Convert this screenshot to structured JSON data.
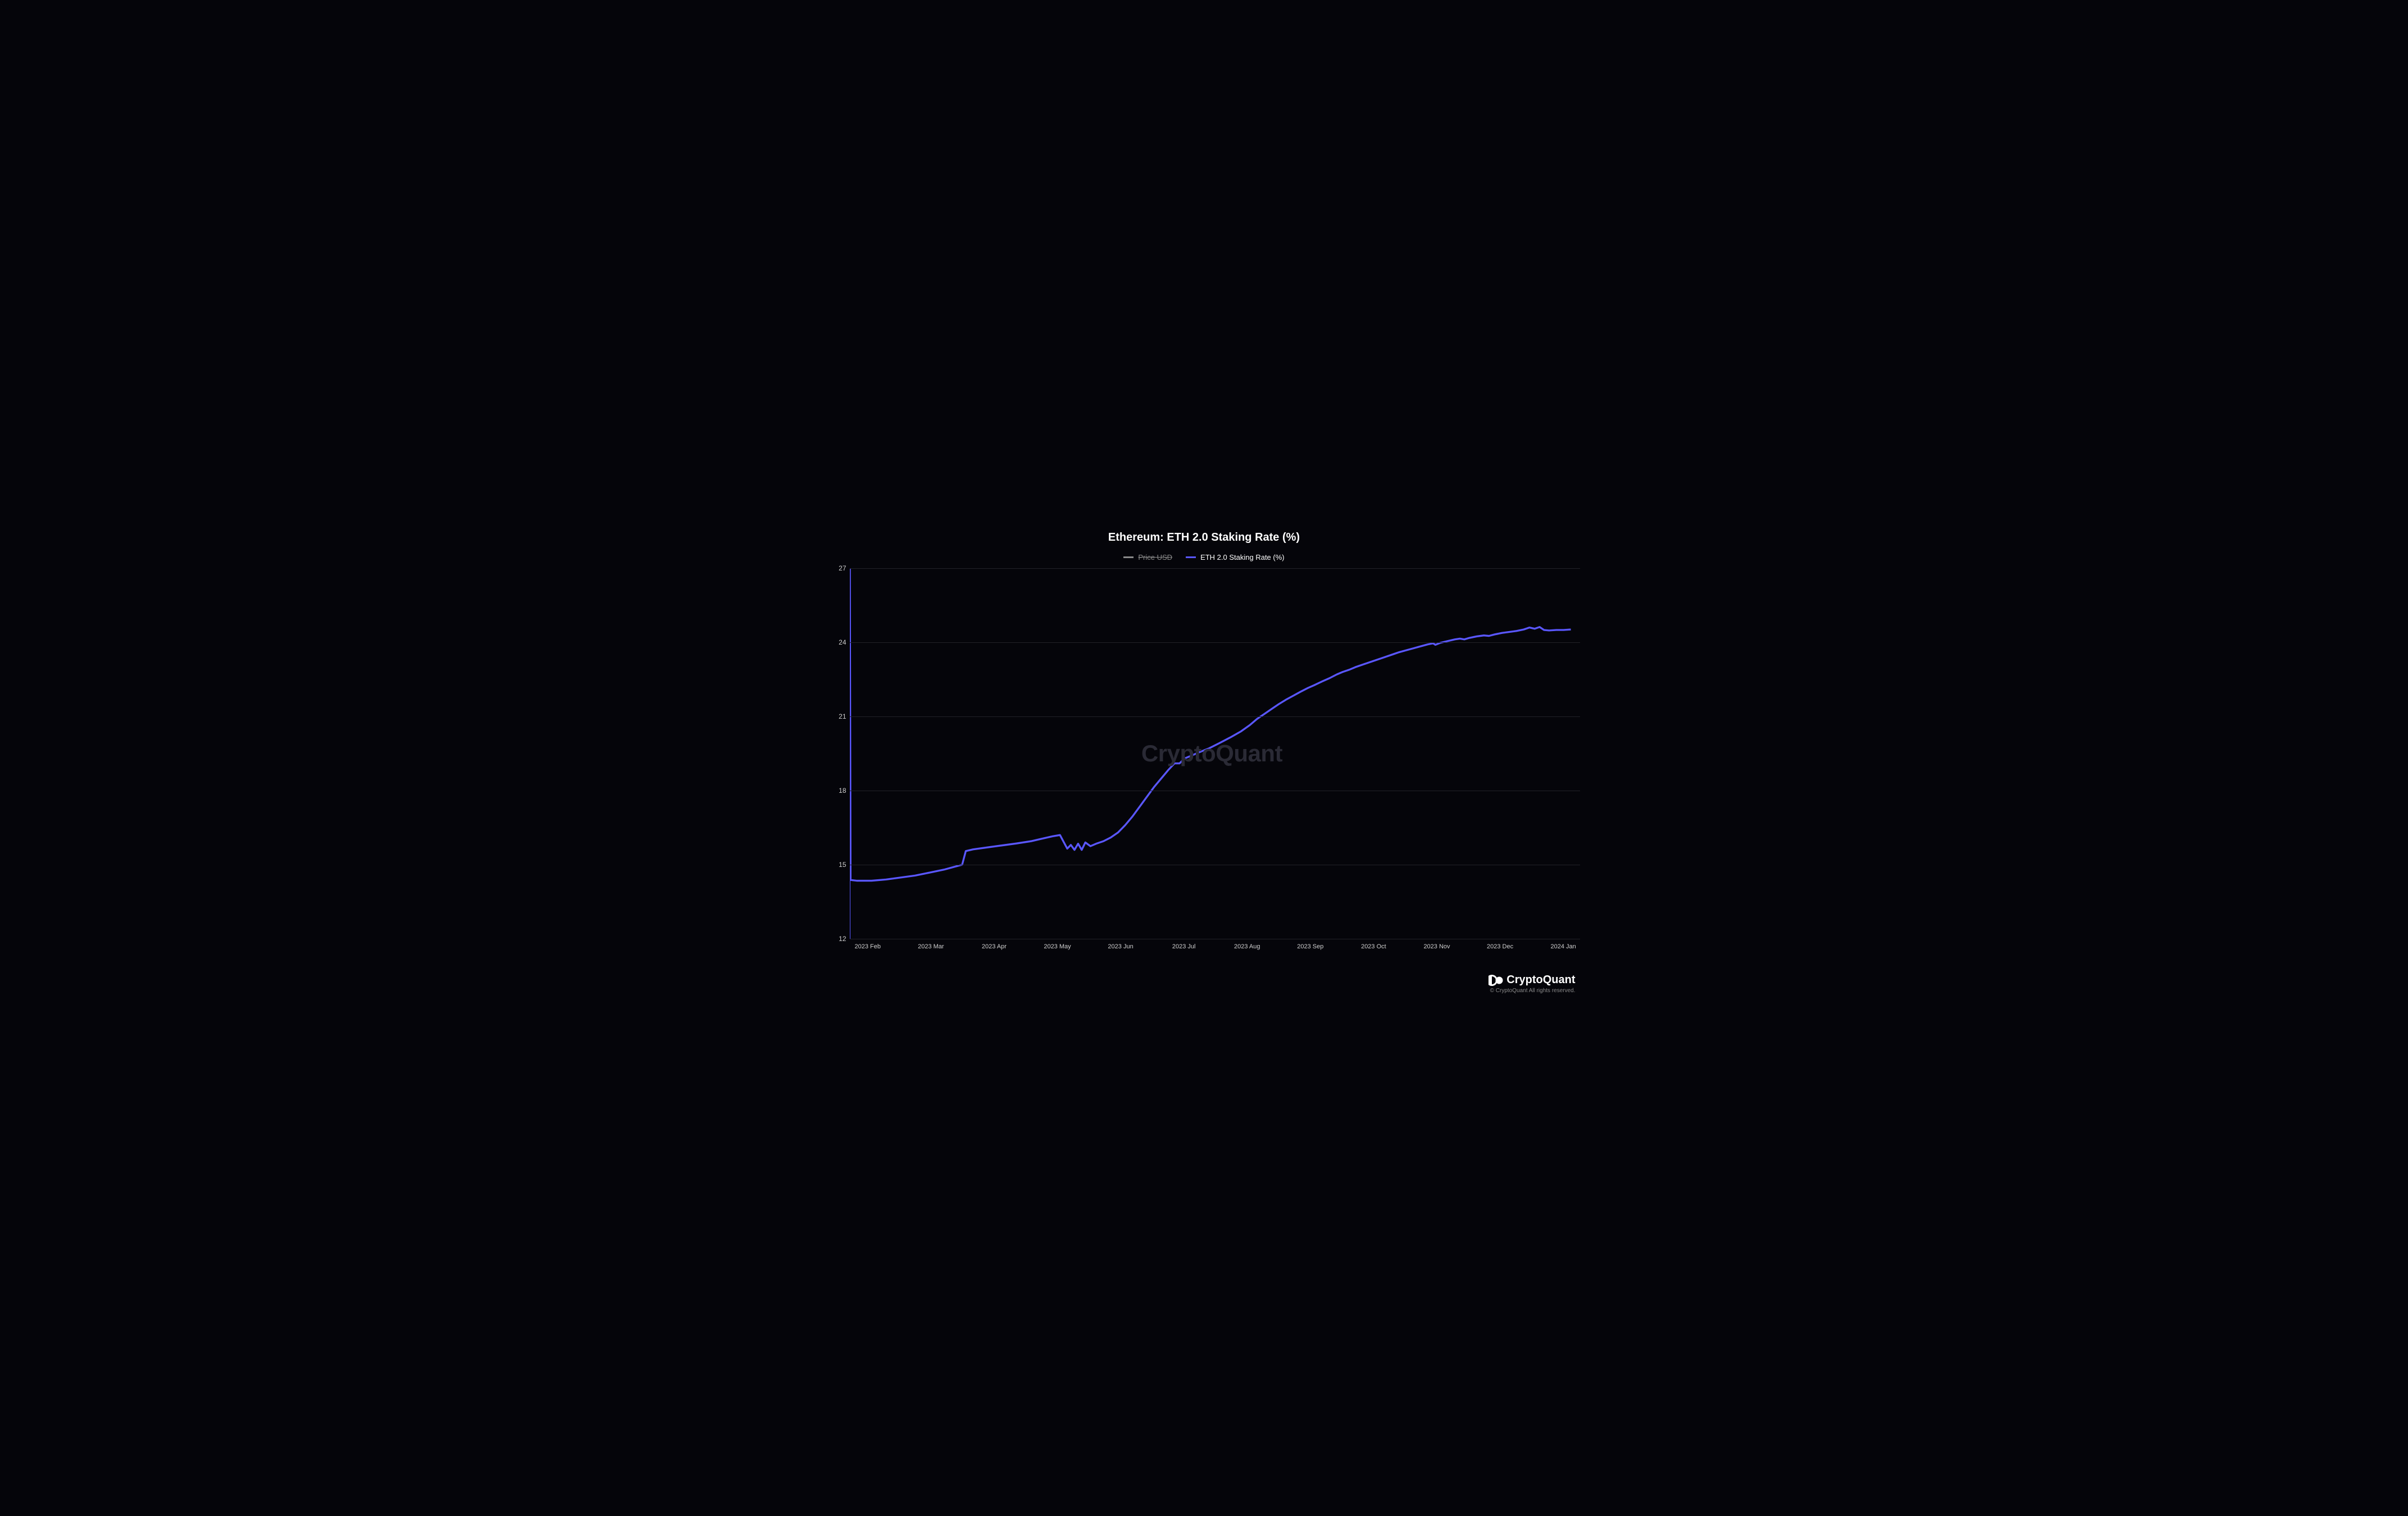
{
  "chart": {
    "type": "line",
    "title": "Ethereum: ETH 2.0 Staking Rate (%)",
    "title_fontsize": 20,
    "title_color": "#ffffff",
    "background_color": "#05050a",
    "grid_color": "#222228",
    "axis_label_color": "#cfcfcf",
    "axis_label_fontsize": 12,
    "axis_line_color": "#5757ff",
    "watermark_text": "CryptoQuant",
    "watermark_color": "#2a2a35",
    "watermark_fontsize": 42,
    "legend": {
      "items": [
        {
          "label": "Price USD",
          "color": "#8a8a8a",
          "strike": true
        },
        {
          "label": "ETH 2.0 Staking Rate (%)",
          "color": "#5a57ff",
          "strike": false
        }
      ],
      "fontsize": 13
    },
    "y_axis": {
      "lim": [
        12,
        27
      ],
      "ticks": [
        12,
        15,
        18,
        21,
        24,
        27
      ],
      "grid": true
    },
    "x_axis": {
      "labels": [
        "2023 Feb",
        "2023 Mar",
        "2023 Apr",
        "2023 May",
        "2023 Jun",
        "2023 Jul",
        "2023 Aug",
        "2023 Sep",
        "2023 Oct",
        "2023 Nov",
        "2023 Dec",
        "2024 Jan"
      ],
      "range_fraction_start": 0.025,
      "range_fraction_end": 0.985
    },
    "series": [
      {
        "name": "ETH 2.0 Staking Rate (%)",
        "color": "#5a57ff",
        "line_width": 2.2,
        "data": [
          [
            0.0,
            27.0
          ],
          [
            0.001,
            14.38
          ],
          [
            0.01,
            14.35
          ],
          [
            0.03,
            14.35
          ],
          [
            0.05,
            14.4
          ],
          [
            0.07,
            14.48
          ],
          [
            0.09,
            14.56
          ],
          [
            0.11,
            14.68
          ],
          [
            0.13,
            14.8
          ],
          [
            0.145,
            14.92
          ],
          [
            0.155,
            15.0
          ],
          [
            0.16,
            15.55
          ],
          [
            0.17,
            15.62
          ],
          [
            0.19,
            15.7
          ],
          [
            0.21,
            15.78
          ],
          [
            0.23,
            15.86
          ],
          [
            0.25,
            15.95
          ],
          [
            0.265,
            16.05
          ],
          [
            0.28,
            16.15
          ],
          [
            0.29,
            16.2
          ],
          [
            0.3,
            15.65
          ],
          [
            0.305,
            15.8
          ],
          [
            0.31,
            15.6
          ],
          [
            0.315,
            15.85
          ],
          [
            0.32,
            15.6
          ],
          [
            0.325,
            15.9
          ],
          [
            0.332,
            15.75
          ],
          [
            0.34,
            15.85
          ],
          [
            0.35,
            15.95
          ],
          [
            0.36,
            16.1
          ],
          [
            0.37,
            16.3
          ],
          [
            0.38,
            16.6
          ],
          [
            0.39,
            16.95
          ],
          [
            0.4,
            17.35
          ],
          [
            0.41,
            17.75
          ],
          [
            0.42,
            18.15
          ],
          [
            0.43,
            18.5
          ],
          [
            0.44,
            18.85
          ],
          [
            0.448,
            19.1
          ],
          [
            0.455,
            19.1
          ],
          [
            0.462,
            19.3
          ],
          [
            0.472,
            19.42
          ],
          [
            0.482,
            19.55
          ],
          [
            0.495,
            19.7
          ],
          [
            0.51,
            19.92
          ],
          [
            0.525,
            20.15
          ],
          [
            0.54,
            20.4
          ],
          [
            0.552,
            20.65
          ],
          [
            0.562,
            20.9
          ],
          [
            0.572,
            21.1
          ],
          [
            0.582,
            21.3
          ],
          [
            0.592,
            21.5
          ],
          [
            0.602,
            21.68
          ],
          [
            0.612,
            21.84
          ],
          [
            0.622,
            22.0
          ],
          [
            0.632,
            22.15
          ],
          [
            0.642,
            22.28
          ],
          [
            0.652,
            22.42
          ],
          [
            0.662,
            22.55
          ],
          [
            0.672,
            22.7
          ],
          [
            0.68,
            22.8
          ],
          [
            0.69,
            22.9
          ],
          [
            0.698,
            23.0
          ],
          [
            0.708,
            23.1
          ],
          [
            0.718,
            23.2
          ],
          [
            0.728,
            23.3
          ],
          [
            0.738,
            23.4
          ],
          [
            0.748,
            23.5
          ],
          [
            0.758,
            23.6
          ],
          [
            0.768,
            23.68
          ],
          [
            0.778,
            23.76
          ],
          [
            0.788,
            23.84
          ],
          [
            0.798,
            23.92
          ],
          [
            0.805,
            23.96
          ],
          [
            0.808,
            23.9
          ],
          [
            0.815,
            23.98
          ],
          [
            0.825,
            24.05
          ],
          [
            0.835,
            24.12
          ],
          [
            0.842,
            24.15
          ],
          [
            0.848,
            24.12
          ],
          [
            0.855,
            24.18
          ],
          [
            0.865,
            24.24
          ],
          [
            0.875,
            24.28
          ],
          [
            0.882,
            24.26
          ],
          [
            0.89,
            24.32
          ],
          [
            0.9,
            24.38
          ],
          [
            0.91,
            24.42
          ],
          [
            0.92,
            24.46
          ],
          [
            0.93,
            24.52
          ],
          [
            0.938,
            24.6
          ],
          [
            0.945,
            24.55
          ],
          [
            0.952,
            24.62
          ],
          [
            0.958,
            24.5
          ],
          [
            0.965,
            24.48
          ],
          [
            0.975,
            24.5
          ],
          [
            0.985,
            24.5
          ],
          [
            0.995,
            24.52
          ]
        ]
      }
    ]
  },
  "footer": {
    "brand": "CryptoQuant",
    "brand_color": "#ffffff",
    "brand_fontsize": 20,
    "copyright": "© CryptoQuant All rights reserved.",
    "copyright_color": "#8a8a8a",
    "copyright_fontsize": 10
  }
}
